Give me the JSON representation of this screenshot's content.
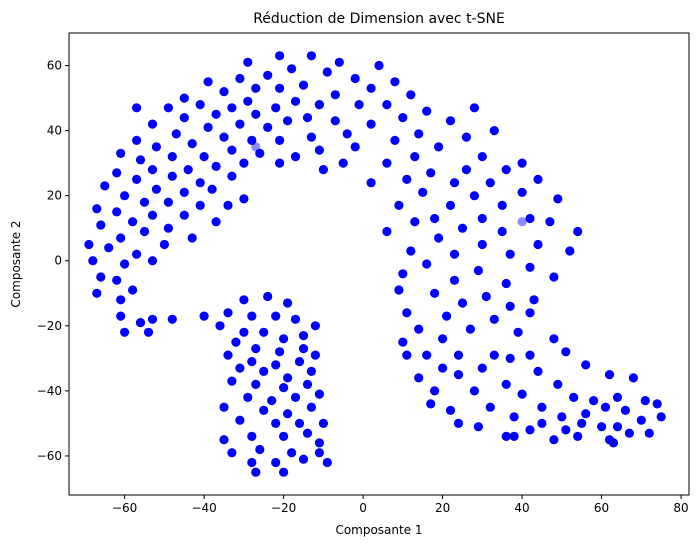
{
  "chart_data": {
    "type": "scatter",
    "title": "Réduction de Dimension avec t-SNE",
    "xlabel": "Composante 1",
    "ylabel": "Composante 2",
    "xlim": [
      -74,
      82
    ],
    "ylim": [
      -72,
      70
    ],
    "xticks": [
      -60,
      -40,
      -20,
      0,
      20,
      40,
      60,
      80
    ],
    "yticks": [
      -60,
      -40,
      -20,
      0,
      20,
      40,
      60
    ],
    "grid": false,
    "marker_color": "#0000ff",
    "series": [
      {
        "points": [
          [
            -21,
            63
          ],
          [
            -13,
            63
          ],
          [
            -6,
            61
          ],
          [
            -29,
            61
          ],
          [
            4,
            60
          ],
          [
            -18,
            59
          ],
          [
            -24,
            57
          ],
          [
            -9,
            58
          ],
          [
            -31,
            56
          ],
          [
            -2,
            56
          ],
          [
            8,
            55
          ],
          [
            -39,
            55
          ],
          [
            -15,
            54
          ],
          [
            -27,
            53
          ],
          [
            -21,
            53
          ],
          [
            2,
            53
          ],
          [
            -35,
            52
          ],
          [
            -7,
            51
          ],
          [
            12,
            51
          ],
          [
            -45,
            50
          ],
          [
            -29,
            49
          ],
          [
            -17,
            49
          ],
          [
            -11,
            48
          ],
          [
            -1,
            48
          ],
          [
            6,
            48
          ],
          [
            -41,
            48
          ],
          [
            -33,
            47
          ],
          [
            -22,
            47
          ],
          [
            -49,
            47
          ],
          [
            -57,
            47
          ],
          [
            28,
            47
          ],
          [
            16,
            46
          ],
          [
            -37,
            45
          ],
          [
            -27,
            45
          ],
          [
            -14,
            44
          ],
          [
            10,
            44
          ],
          [
            -45,
            44
          ],
          [
            -19,
            43
          ],
          [
            22,
            43
          ],
          [
            -7,
            43
          ],
          [
            -31,
            42
          ],
          [
            -53,
            42
          ],
          [
            2,
            42
          ],
          [
            -39,
            41
          ],
          [
            -24,
            41
          ],
          [
            -4,
            39
          ],
          [
            14,
            39
          ],
          [
            -47,
            39
          ],
          [
            -13,
            38
          ],
          [
            -35,
            38
          ],
          [
            -57,
            37
          ],
          [
            33,
            40
          ],
          [
            26,
            38
          ],
          [
            -28,
            37
          ],
          [
            -21,
            37
          ],
          [
            8,
            37
          ],
          [
            -43,
            36
          ],
          [
            -52,
            35
          ],
          [
            19,
            35
          ],
          [
            -2,
            35
          ],
          [
            -33,
            34
          ],
          [
            -11,
            34
          ],
          [
            -61,
            33
          ],
          [
            -26,
            33
          ],
          [
            -48,
            32
          ],
          [
            -40,
            32
          ],
          [
            -17,
            32
          ],
          [
            13,
            32
          ],
          [
            30,
            32
          ],
          [
            -56,
            31
          ],
          [
            -30,
            30
          ],
          [
            -5,
            30
          ],
          [
            -21,
            30
          ],
          [
            6,
            30
          ],
          [
            40,
            30
          ],
          [
            -37,
            29
          ],
          [
            -53,
            28
          ],
          [
            -44,
            28
          ],
          [
            -62,
            27
          ],
          [
            -10,
            28
          ],
          [
            26,
            28
          ],
          [
            36,
            28
          ],
          [
            17,
            27
          ],
          [
            -48,
            26
          ],
          [
            -33,
            26
          ],
          [
            -57,
            25
          ],
          [
            -41,
            24
          ],
          [
            2,
            24
          ],
          [
            11,
            25
          ],
          [
            23,
            24
          ],
          [
            32,
            24
          ],
          [
            44,
            25
          ],
          [
            -65,
            23
          ],
          [
            -52,
            22
          ],
          [
            -38,
            22
          ],
          [
            -45,
            21
          ],
          [
            -60,
            20
          ],
          [
            15,
            21
          ],
          [
            28,
            20
          ],
          [
            40,
            21
          ],
          [
            -30,
            19
          ],
          [
            -49,
            18
          ],
          [
            -55,
            18
          ],
          [
            -34,
            17
          ],
          [
            -41,
            17
          ],
          [
            -67,
            16
          ],
          [
            9,
            17
          ],
          [
            22,
            17
          ],
          [
            35,
            17
          ],
          [
            49,
            19
          ],
          [
            -62,
            15
          ],
          [
            -45,
            14
          ],
          [
            -53,
            14
          ],
          [
            18,
            13
          ],
          [
            30,
            13
          ],
          [
            -58,
            12
          ],
          [
            -49,
            10
          ],
          [
            -66,
            11
          ],
          [
            -37,
            12
          ],
          [
            42,
            13
          ],
          [
            13,
            12
          ],
          [
            47,
            12
          ],
          [
            -55,
            9
          ],
          [
            25,
            10
          ],
          [
            35,
            9
          ],
          [
            6,
            9
          ],
          [
            54,
            9
          ],
          [
            -61,
            7
          ],
          [
            -43,
            7
          ],
          [
            19,
            7
          ],
          [
            -50,
            5
          ],
          [
            -64,
            4
          ],
          [
            -57,
            2
          ],
          [
            30,
            5
          ],
          [
            44,
            5
          ],
          [
            12,
            3
          ],
          [
            52,
            3
          ],
          [
            -69,
            5
          ],
          [
            23,
            2
          ],
          [
            37,
            2
          ],
          [
            -53,
            0
          ],
          [
            -68,
            0
          ],
          [
            -60,
            -1
          ],
          [
            -66,
            -5
          ],
          [
            16,
            -1
          ],
          [
            29,
            -3
          ],
          [
            42,
            -2
          ],
          [
            48,
            -5
          ],
          [
            -62,
            -6
          ],
          [
            10,
            -4
          ],
          [
            23,
            -6
          ],
          [
            36,
            -7
          ],
          [
            -67,
            -10
          ],
          [
            -58,
            -9
          ],
          [
            18,
            -10
          ],
          [
            31,
            -11
          ],
          [
            -61,
            -12
          ],
          [
            43,
            -12
          ],
          [
            9,
            -9
          ],
          [
            25,
            -13
          ],
          [
            37,
            -14
          ],
          [
            11,
            -16
          ],
          [
            -61,
            -17
          ],
          [
            -53,
            -18
          ],
          [
            -56,
            -19
          ],
          [
            -48,
            -18
          ],
          [
            -40,
            -17
          ],
          [
            -34,
            -16
          ],
          [
            -28,
            -17
          ],
          [
            -22,
            -17
          ],
          [
            -17,
            -18
          ],
          [
            -30,
            -12
          ],
          [
            -24,
            -11
          ],
          [
            -19,
            -13
          ],
          [
            -12,
            -20
          ],
          [
            -36,
            -20
          ],
          [
            -30,
            -22
          ],
          [
            -25,
            -22
          ],
          [
            -20,
            -24
          ],
          [
            -15,
            -23
          ],
          [
            -60,
            -22
          ],
          [
            -54,
            -22
          ],
          [
            21,
            -17
          ],
          [
            33,
            -18
          ],
          [
            42,
            -16
          ],
          [
            14,
            -21
          ],
          [
            27,
            -21
          ],
          [
            39,
            -22
          ],
          [
            -32,
            -25
          ],
          [
            -27,
            -27
          ],
          [
            -21,
            -28
          ],
          [
            -15,
            -27
          ],
          [
            10,
            -25
          ],
          [
            20,
            -24
          ],
          [
            48,
            -24
          ],
          [
            -34,
            -29
          ],
          [
            -28,
            -31
          ],
          [
            -22,
            -32
          ],
          [
            -16,
            -31
          ],
          [
            -12,
            -29
          ],
          [
            16,
            -29
          ],
          [
            24,
            -29
          ],
          [
            33,
            -29
          ],
          [
            42,
            -29
          ],
          [
            51,
            -28
          ],
          [
            -31,
            -33
          ],
          [
            -25,
            -34
          ],
          [
            -19,
            -36
          ],
          [
            -13,
            -34
          ],
          [
            11,
            -29
          ],
          [
            37,
            -30
          ],
          [
            56,
            -32
          ],
          [
            -33,
            -37
          ],
          [
            -27,
            -38
          ],
          [
            -20,
            -39
          ],
          [
            -14,
            -38
          ],
          [
            20,
            -33
          ],
          [
            30,
            -33
          ],
          [
            44,
            -34
          ],
          [
            62,
            -35
          ],
          [
            -29,
            -42
          ],
          [
            -23,
            -43
          ],
          [
            -17,
            -42
          ],
          [
            -11,
            -41
          ],
          [
            14,
            -36
          ],
          [
            24,
            -35
          ],
          [
            36,
            -38
          ],
          [
            49,
            -38
          ],
          [
            68,
            -36
          ],
          [
            -35,
            -45
          ],
          [
            -25,
            -46
          ],
          [
            -19,
            -47
          ],
          [
            -13,
            -45
          ],
          [
            18,
            -40
          ],
          [
            28,
            -40
          ],
          [
            40,
            -41
          ],
          [
            53,
            -42
          ],
          [
            58,
            -43
          ],
          [
            64,
            -42
          ],
          [
            -31,
            -49
          ],
          [
            -22,
            -50
          ],
          [
            -16,
            -50
          ],
          [
            -10,
            -50
          ],
          [
            22,
            -46
          ],
          [
            32,
            -45
          ],
          [
            45,
            -45
          ],
          [
            61,
            -45
          ],
          [
            71,
            -43
          ],
          [
            -35,
            -55
          ],
          [
            -28,
            -54
          ],
          [
            -20,
            -54
          ],
          [
            -14,
            -53
          ],
          [
            17,
            -44
          ],
          [
            38,
            -48
          ],
          [
            50,
            -48
          ],
          [
            56,
            -47
          ],
          [
            66,
            -46
          ],
          [
            74,
            -44
          ],
          [
            -33,
            -59
          ],
          [
            -26,
            -58
          ],
          [
            -18,
            -59
          ],
          [
            -11,
            -56
          ],
          [
            24,
            -50
          ],
          [
            45,
            -50
          ],
          [
            55,
            -50
          ],
          [
            60,
            -51
          ],
          [
            70,
            -49
          ],
          [
            75,
            -48
          ],
          [
            -28,
            -62
          ],
          [
            -22,
            -62
          ],
          [
            -15,
            -61
          ],
          [
            29,
            -51
          ],
          [
            42,
            -52
          ],
          [
            51,
            -52
          ],
          [
            64,
            -51
          ],
          [
            -27,
            -65
          ],
          [
            -20,
            -65
          ],
          [
            -9,
            -62
          ],
          [
            38,
            -54
          ],
          [
            48,
            -55
          ],
          [
            54,
            -54
          ],
          [
            62,
            -55
          ],
          [
            67,
            -53
          ],
          [
            72,
            -53
          ],
          [
            -11,
            -59
          ],
          [
            36,
            -54
          ],
          [
            63,
            -56
          ]
        ]
      }
    ],
    "faint_points": [
      [
        -27,
        35
      ],
      [
        -11,
        48
      ],
      [
        40,
        12
      ]
    ]
  }
}
